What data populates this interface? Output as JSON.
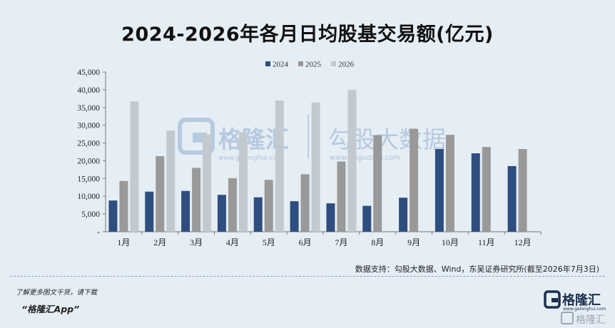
{
  "title": "2024-2026年各月日均股基交易额(亿元)",
  "chart_data": {
    "type": "bar",
    "categories": [
      "1月",
      "2月",
      "3月",
      "4月",
      "5月",
      "6月",
      "7月",
      "8月",
      "9月",
      "10月",
      "11月",
      "12月"
    ],
    "series": [
      {
        "name": "2024",
        "color": "#2e4e80",
        "values": [
          8800,
          11300,
          11500,
          10400,
          9700,
          8600,
          8000,
          7300,
          9600,
          23300,
          22100,
          18500
        ]
      },
      {
        "name": "2025",
        "color": "#999999",
        "values": [
          14300,
          21300,
          18000,
          15100,
          14600,
          16200,
          19800,
          27200,
          29000,
          27300,
          23900,
          23300
        ]
      },
      {
        "name": "2026",
        "color": "#c3cacf",
        "values": [
          36700,
          28500,
          27400,
          28000,
          37000,
          36400,
          40000,
          null,
          null,
          null,
          null,
          null
        ]
      }
    ],
    "ylim": [
      0,
      45000
    ],
    "yticks": [
      "-",
      "5,000",
      "10,000",
      "15,000",
      "20,000",
      "25,000",
      "30,000",
      "35,000",
      "40,000",
      "45,000"
    ],
    "legend_position": "top-center",
    "grid": false
  },
  "source": "数据支持：勾股大数据、Wind，东吴证券研究所(截至2026年7月3日)",
  "watermark": {
    "brand": "格隆汇",
    "brand_url": "www.gelonghui.com",
    "partner": "勾股大数据",
    "partner_url": "www.gogudata.com"
  },
  "promo": {
    "line1": "了解更多图文干货，请下载",
    "line2": "“格隆汇App”"
  },
  "brand_logo": {
    "name": "格隆汇",
    "url": "www.gelonghui.com"
  },
  "corner_mark": "格隆汇"
}
